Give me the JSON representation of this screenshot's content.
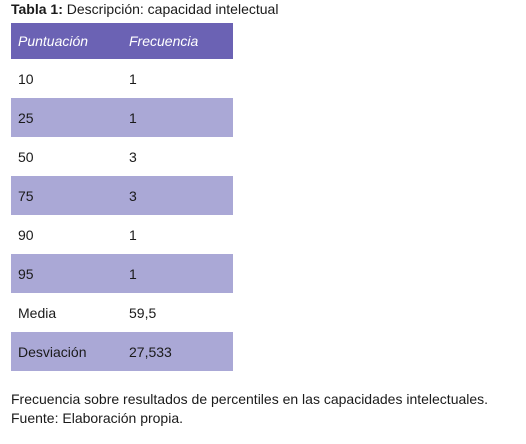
{
  "caption": {
    "label": "Tabla 1:",
    "text": "Descripción: capacidad intelectual"
  },
  "table": {
    "headers": [
      "Puntuación",
      "Frecuencia"
    ],
    "rows": [
      [
        "10",
        "1"
      ],
      [
        "25",
        "1"
      ],
      [
        "50",
        "3"
      ],
      [
        "75",
        "3"
      ],
      [
        "90",
        "1"
      ],
      [
        "95",
        "1"
      ],
      [
        "Media",
        "59,5"
      ],
      [
        "Desviación",
        "27,533"
      ]
    ]
  },
  "notes": {
    "line1": "Frecuencia sobre resultados de percentiles en las capacidades intelectuales.",
    "line2": "Fuente: Elaboración propia."
  },
  "colors": {
    "header_bg": "#6b62b4",
    "shaded_row_bg": "#aaa8d6"
  }
}
